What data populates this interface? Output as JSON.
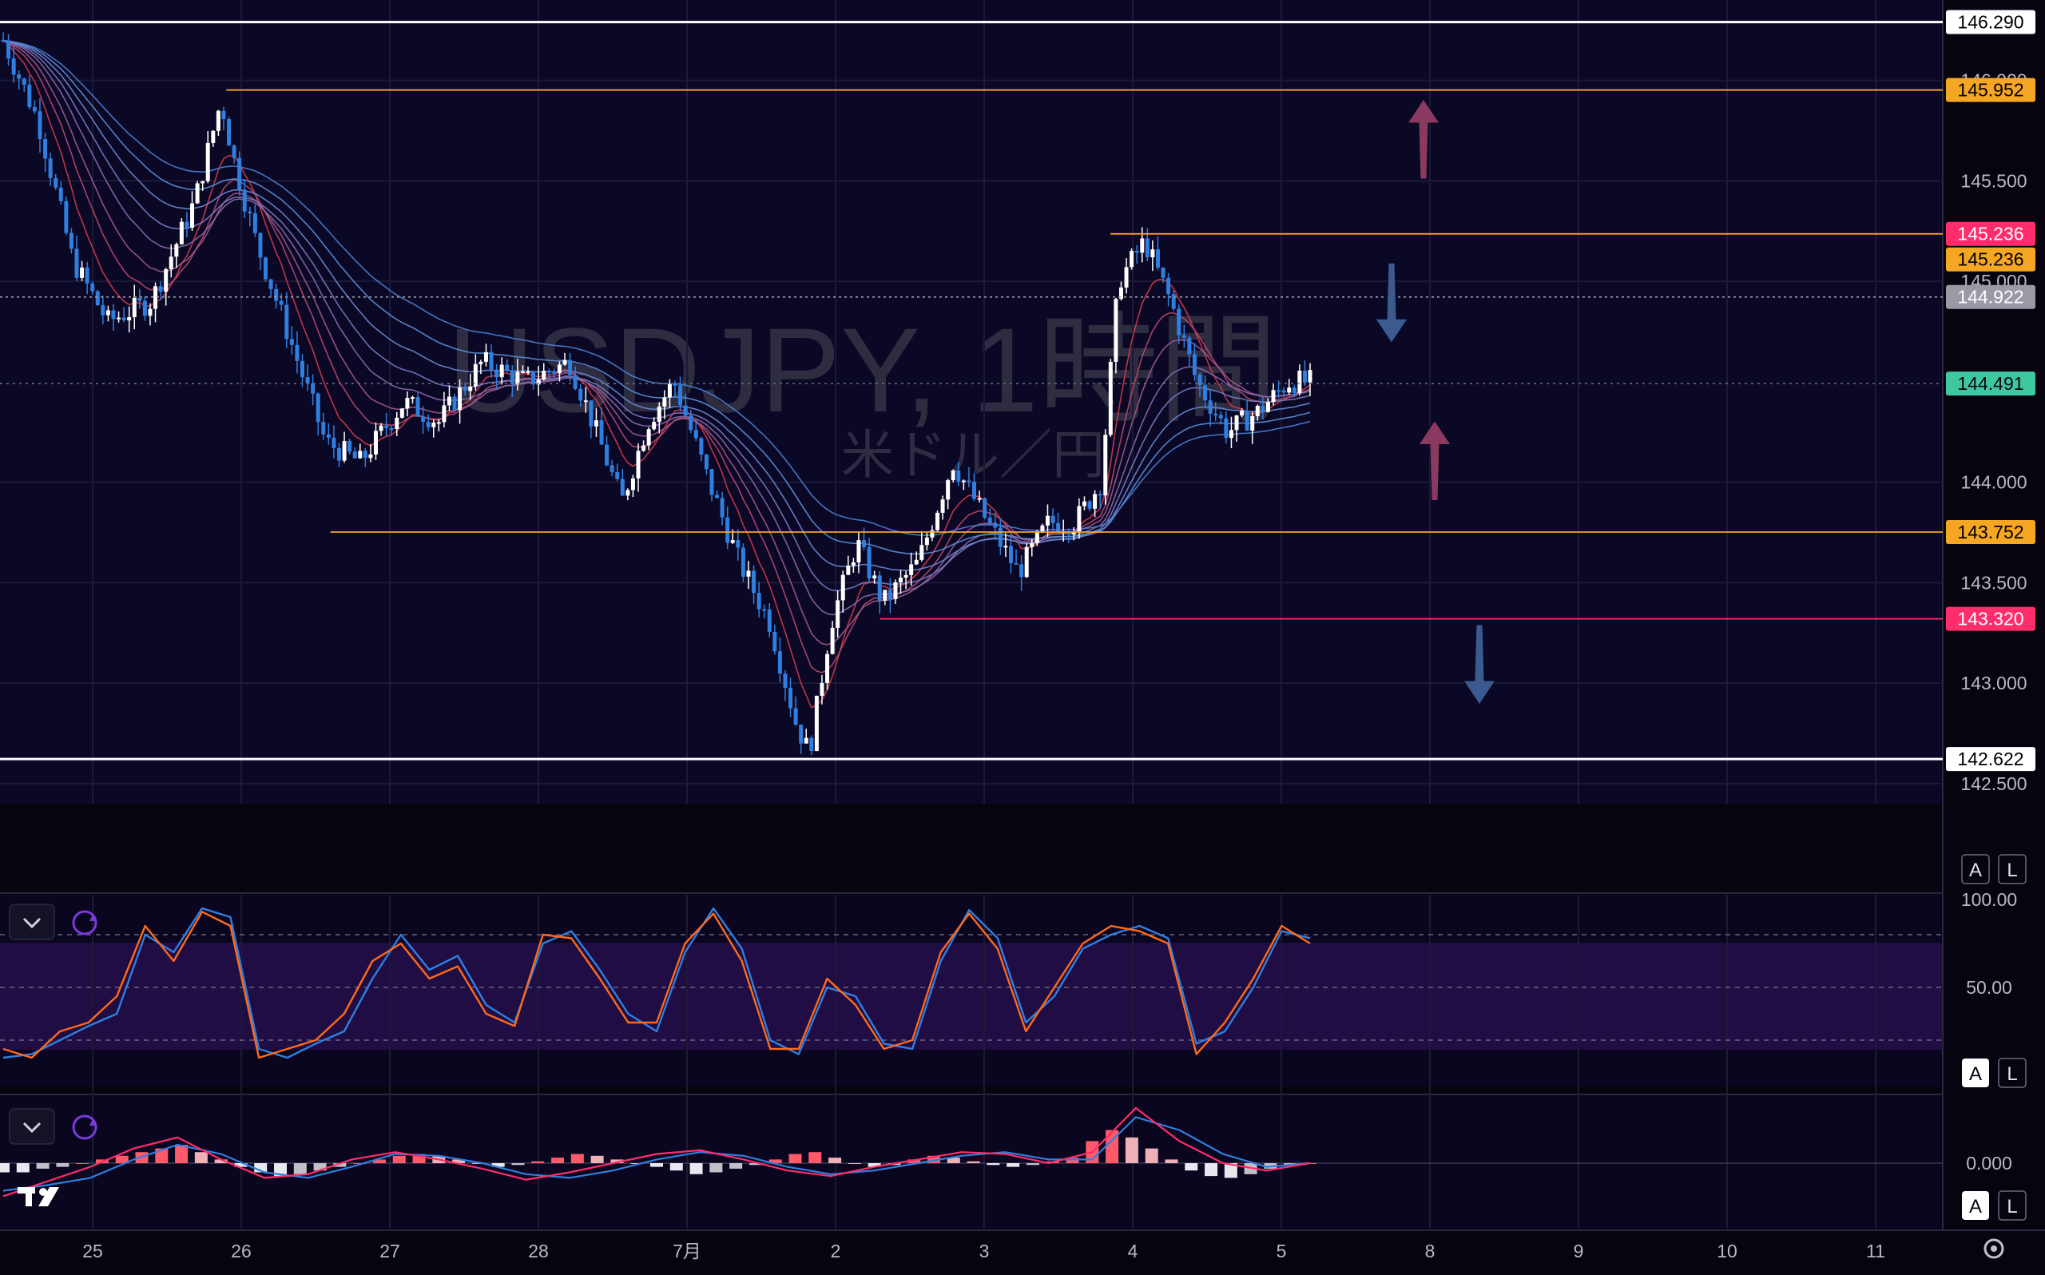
{
  "chart_data": [
    {
      "type": "candlestick",
      "title": "USDJPY, 1時間",
      "subtitle": "米ドル／円",
      "x_ticks": [
        "25",
        "26",
        "27",
        "28",
        "7月",
        "2",
        "3",
        "4",
        "5",
        "8",
        "9",
        "10",
        "11"
      ],
      "y_ticks": [
        "146.000",
        "145.500",
        "145.000",
        "144.000",
        "143.500",
        "143.000",
        "142.500"
      ],
      "ylim": [
        142.4,
        146.4
      ],
      "last_price": "144.491",
      "price_levels": [
        {
          "label": "146.290",
          "value": 146.29,
          "color": "#ffffff",
          "start_day": "24"
        },
        {
          "label": "145.952",
          "value": 145.952,
          "color": "#f5a623",
          "start_day": "25.9"
        },
        {
          "label": "145.236",
          "value": 145.236,
          "color": "#ff2d6b",
          "start_day": "3.85"
        },
        {
          "label": "145.236",
          "value": 145.236,
          "color": "#f5a623",
          "start_day": "3.85"
        },
        {
          "label": "144.922",
          "value": 144.922,
          "color": "#9a9aa6",
          "start_day": "24"
        },
        {
          "label": "143.752",
          "value": 143.752,
          "color": "#f5a623",
          "start_day": "26.6"
        },
        {
          "label": "143.320",
          "value": 143.32,
          "color": "#ff2d6b",
          "start_day": "2.3"
        },
        {
          "label": "142.622",
          "value": 142.622,
          "color": "#ffffff",
          "start_day": "24"
        }
      ],
      "price_path": [
        [
          0,
          146.2
        ],
        [
          0.8,
          145.8
        ],
        [
          1.6,
          145.1
        ],
        [
          2.4,
          144.8
        ],
        [
          3.4,
          144.9
        ],
        [
          4.4,
          145.4
        ],
        [
          5,
          145.9
        ],
        [
          5.3,
          145.6
        ],
        [
          5.8,
          145.2
        ],
        [
          6.6,
          144.7
        ],
        [
          7.4,
          144.2
        ],
        [
          8.2,
          144.1
        ],
        [
          9.2,
          144.4
        ],
        [
          10,
          144.3
        ],
        [
          11,
          144.6
        ],
        [
          12,
          144.5
        ],
        [
          13,
          144.6
        ],
        [
          13.7,
          144.2
        ],
        [
          14.2,
          143.9
        ],
        [
          14.8,
          144.3
        ],
        [
          15.4,
          144.5
        ],
        [
          16.2,
          144.0
        ],
        [
          16.9,
          143.6
        ],
        [
          17.6,
          143.3
        ],
        [
          18.2,
          142.8
        ],
        [
          18.5,
          142.65
        ],
        [
          19,
          143.3
        ],
        [
          19.6,
          143.7
        ],
        [
          20.2,
          143.4
        ],
        [
          21,
          143.6
        ],
        [
          21.8,
          144.1
        ],
        [
          22.6,
          143.8
        ],
        [
          23.3,
          143.55
        ],
        [
          24,
          143.8
        ],
        [
          24.6,
          143.8
        ],
        [
          25.2,
          144.0
        ],
        [
          25.6,
          145.0
        ],
        [
          26.2,
          145.2
        ],
        [
          26.8,
          144.9
        ],
        [
          27.4,
          144.5
        ],
        [
          28.1,
          144.25
        ],
        [
          28.8,
          144.35
        ],
        [
          29.5,
          144.5
        ],
        [
          30,
          144.5
        ]
      ],
      "arrows": [
        {
          "direction": "up",
          "color": "#8a3a5e",
          "price": 145.7
        },
        {
          "direction": "down",
          "color": "#3a5a90",
          "price": 144.9
        },
        {
          "direction": "up",
          "color": "#8a3a5e",
          "price": 144.1
        },
        {
          "direction": "down",
          "color": "#3a5a90",
          "price": 143.1
        }
      ]
    },
    {
      "type": "line",
      "title": "",
      "y_ticks": [
        "100.00",
        "50.00"
      ],
      "ylim": [
        0,
        100
      ],
      "bands": [
        20,
        50,
        80
      ],
      "series": [
        {
          "color": "#2f7fe0",
          "values": [
            10,
            12,
            20,
            28,
            35,
            80,
            70,
            95,
            90,
            15,
            10,
            18,
            25,
            55,
            80,
            60,
            68,
            40,
            30,
            75,
            82,
            60,
            35,
            25,
            70,
            95,
            72,
            20,
            12,
            50,
            45,
            18,
            15,
            65,
            94,
            78,
            30,
            45,
            72,
            80,
            85,
            78,
            18,
            25,
            50,
            82,
            78
          ]
        },
        {
          "color": "#ff6a1a",
          "values": [
            15,
            10,
            25,
            30,
            45,
            85,
            65,
            93,
            85,
            10,
            15,
            20,
            35,
            65,
            75,
            55,
            62,
            35,
            28,
            80,
            78,
            55,
            30,
            30,
            75,
            92,
            65,
            15,
            15,
            55,
            40,
            15,
            20,
            70,
            92,
            72,
            25,
            50,
            75,
            85,
            82,
            75,
            12,
            30,
            55,
            85,
            75
          ]
        }
      ]
    },
    {
      "type": "bar",
      "title": "",
      "y_ticks": [
        "0.000"
      ],
      "ylim": [
        -0.25,
        0.3
      ],
      "values": [
        -0.05,
        -0.05,
        -0.03,
        -0.02,
        0.0,
        0.02,
        0.04,
        0.06,
        0.08,
        0.1,
        0.06,
        0.02,
        -0.02,
        -0.05,
        -0.07,
        -0.06,
        -0.04,
        -0.02,
        0.0,
        0.02,
        0.04,
        0.05,
        0.04,
        0.02,
        0.0,
        -0.02,
        -0.01,
        0.01,
        0.03,
        0.05,
        0.04,
        0.02,
        0.0,
        -0.02,
        -0.04,
        -0.06,
        -0.05,
        -0.03,
        -0.01,
        0.02,
        0.05,
        0.06,
        0.03,
        0.0,
        -0.02,
        -0.01,
        0.02,
        0.04,
        0.03,
        0.01,
        -0.01,
        -0.02,
        -0.01,
        0.01,
        0.03,
        0.12,
        0.18,
        0.14,
        0.08,
        0.02,
        -0.04,
        -0.07,
        -0.08,
        -0.06,
        -0.03,
        -0.01,
        0.0
      ],
      "series": [
        {
          "color": "#2f7fe0",
          "values": [
            -0.15,
            -0.12,
            -0.08,
            0.02,
            0.1,
            0.05,
            -0.05,
            -0.08,
            -0.02,
            0.05,
            0.04,
            0.0,
            -0.06,
            -0.08,
            -0.04,
            0.02,
            0.06,
            0.04,
            -0.02,
            -0.06,
            -0.04,
            0.0,
            0.04,
            0.06,
            0.02,
            0.02,
            0.25,
            0.18,
            0.05,
            -0.02,
            0.0
          ]
        },
        {
          "color": "#ff2d6b",
          "values": [
            -0.18,
            -0.1,
            -0.02,
            0.08,
            0.14,
            0.02,
            -0.08,
            -0.06,
            0.02,
            0.06,
            0.02,
            -0.03,
            -0.09,
            -0.05,
            0.0,
            0.05,
            0.07,
            0.02,
            -0.04,
            -0.07,
            -0.02,
            0.02,
            0.06,
            0.05,
            0.0,
            0.06,
            0.3,
            0.12,
            0.0,
            -0.04,
            0.0
          ]
        }
      ]
    }
  ],
  "panels": [
    {
      "collapse_icon": "chevron-down-icon",
      "sync_icon": "sync-icon"
    },
    {
      "collapse_icon": "chevron-down-icon",
      "sync_icon": "sync-icon"
    }
  ],
  "scale_buttons": {
    "auto": "A",
    "log": "L"
  },
  "logo": "TV",
  "settings_icon": "gear-icon",
  "colors": {
    "background": "#07040f",
    "bull_candle": "#ffffff",
    "bear_candle": "#2f7fe0",
    "orange": "#f5a623",
    "magenta": "#ff2d6b",
    "last_price": "#3fc8a0"
  }
}
